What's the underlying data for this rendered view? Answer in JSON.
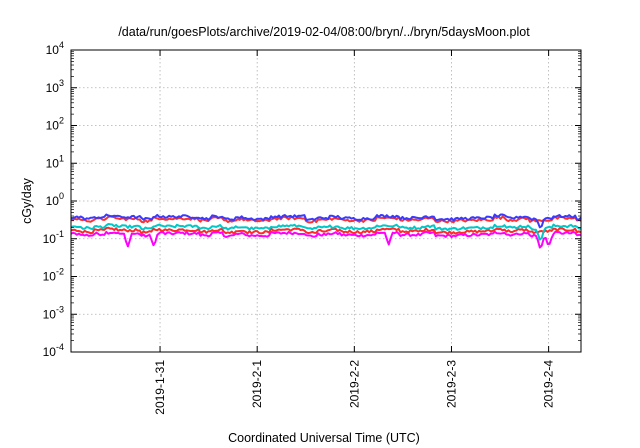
{
  "chart_data": {
    "type": "line",
    "title": "/data/run/goesPlots/archive/2019-02-04/08:00/bryn/../bryn/5daysMoon.plot",
    "xlabel": "Coordinated Universal Time (UTC)",
    "ylabel": "cGy/day",
    "yscale": "log",
    "ylim": [
      0.0001,
      10000
    ],
    "y_ticks": [
      {
        "value": 0.0001,
        "base": "10",
        "exp": "-4"
      },
      {
        "value": 0.001,
        "base": "10",
        "exp": "-3"
      },
      {
        "value": 0.01,
        "base": "10",
        "exp": "-2"
      },
      {
        "value": 0.1,
        "base": "10",
        "exp": "-1"
      },
      {
        "value": 1,
        "base": "10",
        "exp": "0"
      },
      {
        "value": 10,
        "base": "10",
        "exp": "1"
      },
      {
        "value": 100,
        "base": "10",
        "exp": "2"
      },
      {
        "value": 1000,
        "base": "10",
        "exp": "3"
      },
      {
        "value": 10000,
        "base": "10",
        "exp": "4"
      }
    ],
    "xlim": [
      "2019-01-30T02:00",
      "2019-02-04T08:00"
    ],
    "x_ticks": [
      "2019-1-31",
      "2019-2-1",
      "2019-2-2",
      "2019-2-3",
      "2019-2-4"
    ],
    "x_tick_dates": [
      "2019-01-31",
      "2019-02-01",
      "2019-02-02",
      "2019-02-03",
      "2019-02-04"
    ],
    "grid": true,
    "legend": "none",
    "series": [
      {
        "color": "#ff00ff",
        "level": 0.13,
        "dips": [
          {
            "x": "2019-01-30T16:00",
            "value": 0.06
          },
          {
            "x": "2019-01-30T22:30",
            "value": 0.06
          },
          {
            "x": "2019-02-02T08:30",
            "value": 0.07
          },
          {
            "x": "2019-02-03T22:00",
            "value": 0.05
          },
          {
            "x": "2019-02-04T00:00",
            "value": 0.06
          }
        ]
      },
      {
        "color": "#ff2a2a",
        "level": 0.16,
        "dips": []
      },
      {
        "color": "#00c8c8",
        "level": 0.2,
        "dips": [
          {
            "x": "2019-02-03T22:00",
            "value": 0.08
          }
        ]
      },
      {
        "color": "#ff3030",
        "level": 0.32,
        "dips": []
      },
      {
        "color": "#3a3aff",
        "level": 0.36,
        "dips": [
          {
            "x": "2019-02-03T22:00",
            "value": 0.18
          }
        ]
      }
    ]
  }
}
